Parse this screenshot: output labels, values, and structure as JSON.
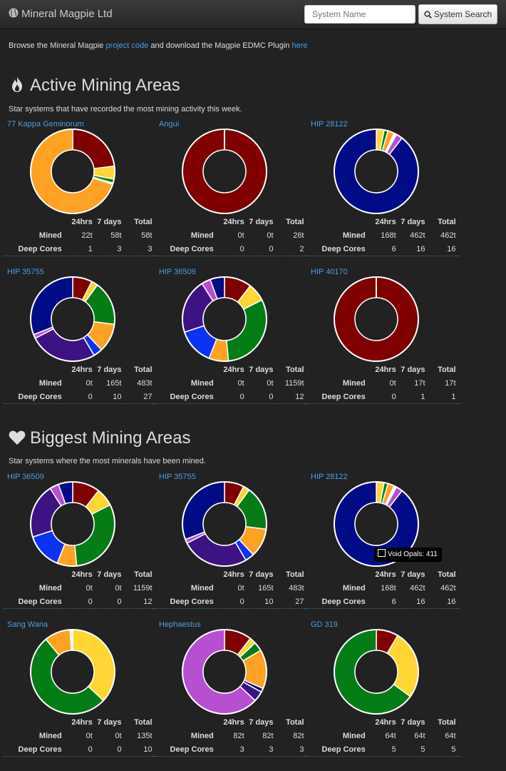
{
  "nav": {
    "brand": "Mineral Magpie Ltd",
    "search_placeholder": "System Name",
    "search_button": "System Search"
  },
  "intro": {
    "text_before": "Browse the Mineral Magpie ",
    "link1": "project code",
    "text_middle": " and download the Magpie EDMC Plugin ",
    "link2": "here"
  },
  "headers": {
    "h24": "24hrs",
    "h7": "7 days",
    "htotal": "Total",
    "mined": "Mined",
    "cores": "Deep Cores"
  },
  "colors": {
    "red": "#800000",
    "yellow": "#ffd633",
    "green": "#057d17",
    "orange": "#ffa122",
    "navy": "#000c85",
    "purple": "#3d1282",
    "violet": "#b74fd1",
    "blue": "#0c33f5",
    "white": "#ffffff"
  },
  "sections": [
    {
      "title": "Active Mining Areas",
      "subtitle": "Star systems that have recorded the most mining activity this week.",
      "icon": "flame-icon",
      "cards": [
        {
          "system": "77 Kappa Geminorum",
          "mined": [
            "22t",
            "58t",
            "58t"
          ],
          "cores": [
            "1",
            "3",
            "3"
          ],
          "slices": [
            [
              "red",
              23
            ],
            [
              "yellow",
              5
            ],
            [
              "green",
              1.5
            ],
            [
              "white",
              0.5
            ],
            [
              "orange",
              70
            ]
          ]
        },
        {
          "system": "Angui",
          "mined": [
            "0t",
            "0t",
            "26t"
          ],
          "cores": [
            "0",
            "0",
            "2"
          ],
          "slices": [
            [
              "red",
              100
            ]
          ]
        },
        {
          "system": "HIP 28122",
          "mined": [
            "168t",
            "462t",
            "462t"
          ],
          "cores": [
            "6",
            "16",
            "16"
          ],
          "slices": [
            [
              "yellow",
              3
            ],
            [
              "green",
              1.5
            ],
            [
              "orange",
              2.5
            ],
            [
              "white",
              1
            ],
            [
              "violet",
              2.5
            ],
            [
              "navy",
              89.5
            ]
          ]
        },
        {
          "system": "HIP 35755",
          "mined": [
            "0t",
            "165t",
            "483t"
          ],
          "cores": [
            "0",
            "10",
            "27"
          ],
          "slices": [
            [
              "red",
              7.5
            ],
            [
              "yellow",
              2.5
            ],
            [
              "green",
              17
            ],
            [
              "orange",
              11
            ],
            [
              "blue",
              3.5
            ],
            [
              "purple",
              26
            ],
            [
              "violet",
              1.5
            ],
            [
              "navy",
              31
            ]
          ]
        },
        {
          "system": "HIP 36509",
          "mined": [
            "0t",
            "0t",
            "1159t"
          ],
          "cores": [
            "0",
            "0",
            "12"
          ],
          "slices": [
            [
              "red",
              10.5
            ],
            [
              "yellow",
              7
            ],
            [
              "green",
              31
            ],
            [
              "orange",
              7.5
            ],
            [
              "blue",
              14
            ],
            [
              "purple",
              21
            ],
            [
              "violet",
              3.5
            ],
            [
              "navy",
              5.5
            ]
          ]
        },
        {
          "system": "HIP 40170",
          "mined": [
            "0t",
            "17t",
            "17t"
          ],
          "cores": [
            "0",
            "1",
            "1"
          ],
          "slices": [
            [
              "red",
              100
            ]
          ]
        }
      ]
    },
    {
      "title": "Biggest Mining Areas",
      "subtitle": "Star systems where the most minerals have been mined.",
      "icon": "heart-icon",
      "cards": [
        {
          "system": "HIP 36509",
          "mined": [
            "0t",
            "0t",
            "1159t"
          ],
          "cores": [
            "0",
            "0",
            "12"
          ],
          "slices": [
            [
              "red",
              10.5
            ],
            [
              "yellow",
              7
            ],
            [
              "green",
              31
            ],
            [
              "orange",
              7.5
            ],
            [
              "blue",
              14
            ],
            [
              "purple",
              21
            ],
            [
              "violet",
              3.5
            ],
            [
              "navy",
              5.5
            ]
          ]
        },
        {
          "system": "HIP 35755",
          "mined": [
            "0t",
            "165t",
            "483t"
          ],
          "cores": [
            "0",
            "10",
            "27"
          ],
          "slices": [
            [
              "red",
              7.5
            ],
            [
              "yellow",
              2.5
            ],
            [
              "green",
              17
            ],
            [
              "orange",
              11
            ],
            [
              "blue",
              3.5
            ],
            [
              "purple",
              26
            ],
            [
              "violet",
              1.5
            ],
            [
              "navy",
              31
            ]
          ]
        },
        {
          "system": "HIP 28122",
          "mined": [
            "168t",
            "462t",
            "462t"
          ],
          "cores": [
            "6",
            "16",
            "16"
          ],
          "slices": [
            [
              "yellow",
              3
            ],
            [
              "green",
              1.5
            ],
            [
              "orange",
              2.5
            ],
            [
              "white",
              1
            ],
            [
              "violet",
              2.5
            ],
            [
              "navy",
              89.5
            ]
          ]
        },
        {
          "system": "Sang Wana",
          "mined": [
            "0t",
            "0t",
            "135t"
          ],
          "cores": [
            "0",
            "0",
            "10"
          ],
          "slices": [
            [
              "yellow",
              37
            ],
            [
              "green",
              52
            ],
            [
              "orange",
              10
            ],
            [
              "white",
              1
            ]
          ]
        },
        {
          "system": "Hephaestus",
          "mined": [
            "82t",
            "82t",
            "82t"
          ],
          "cores": [
            "3",
            "3",
            "3"
          ],
          "slices": [
            [
              "red",
              10.5
            ],
            [
              "yellow",
              2.5
            ],
            [
              "green",
              3.5
            ],
            [
              "orange",
              15
            ],
            [
              "navy",
              1.5
            ],
            [
              "purple",
              4
            ],
            [
              "violet",
              63
            ]
          ]
        },
        {
          "system": "GD 319",
          "mined": [
            "64t",
            "64t",
            "64t"
          ],
          "cores": [
            "5",
            "5",
            "5"
          ],
          "slices": [
            [
              "red",
              8.5
            ],
            [
              "yellow",
              26.5
            ],
            [
              "green",
              65
            ]
          ]
        }
      ]
    }
  ],
  "tooltip": {
    "text": "Void Opals: 411"
  }
}
